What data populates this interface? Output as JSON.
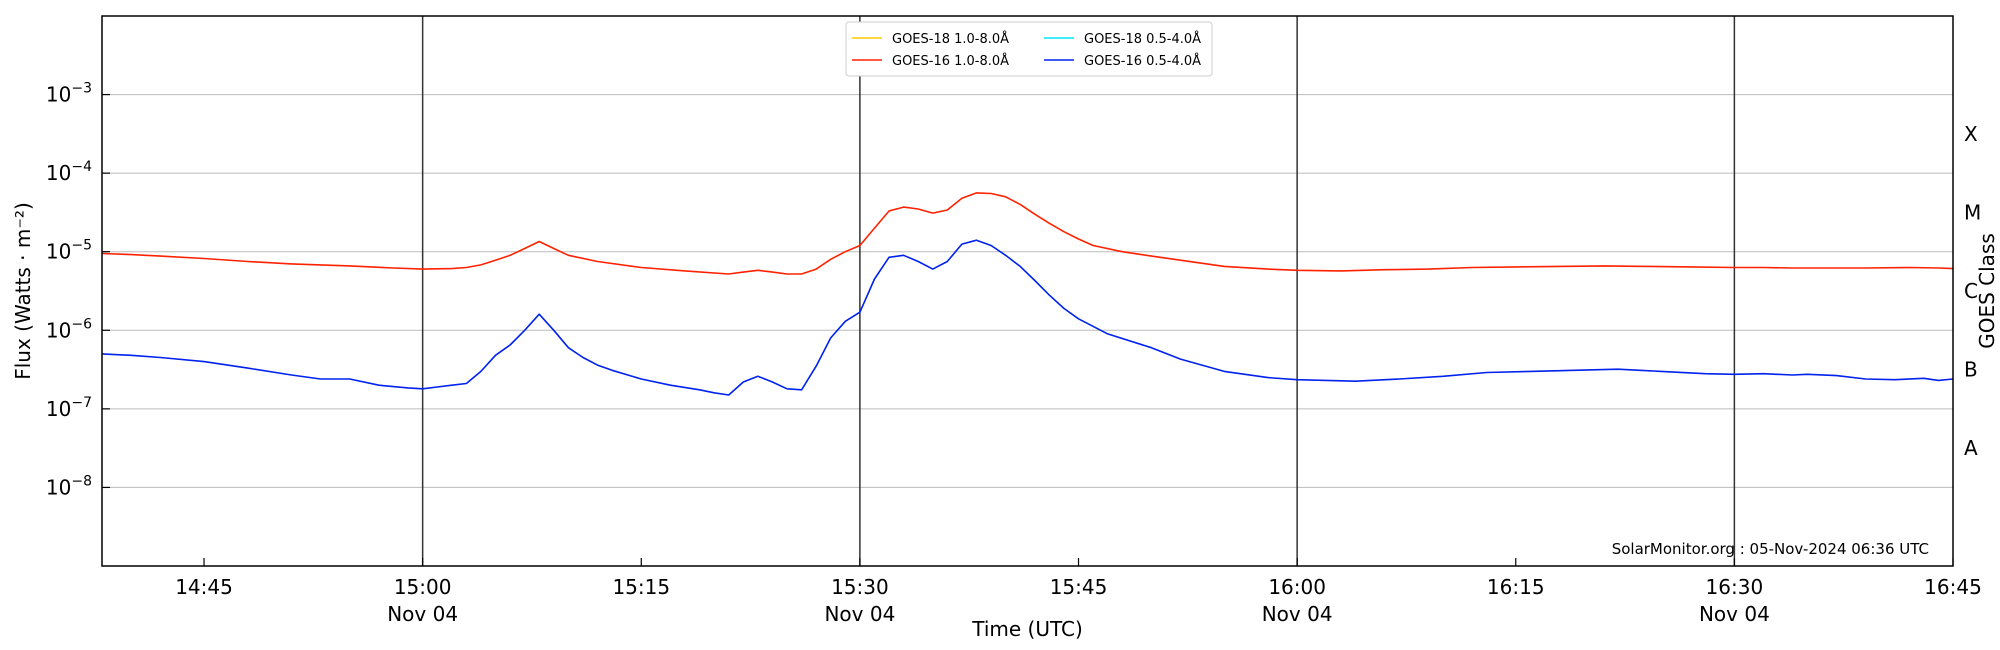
{
  "chart_data": {
    "type": "line",
    "ylabel": "Flux (Watts · m⁻²)",
    "xlabel": "Time (UTC)",
    "right_axis_label": "GOES Class",
    "credit": "SolarMonitor.org : 05-Nov-2024 06:36 UTC",
    "y_scale": "log",
    "ylim": [
      1e-09,
      0.01
    ],
    "xlim": [
      "14:38",
      "16:45"
    ],
    "grid": "horizontal",
    "legend_position": "top-center",
    "y_ticks": [
      {
        "value": 1e-08,
        "base": "10",
        "exp": "−8"
      },
      {
        "value": 1e-07,
        "base": "10",
        "exp": "−7"
      },
      {
        "value": 1e-06,
        "base": "10",
        "exp": "−6"
      },
      {
        "value": 1e-05,
        "base": "10",
        "exp": "−5"
      },
      {
        "value": 0.0001,
        "base": "10",
        "exp": "−4"
      },
      {
        "value": 0.001,
        "base": "10",
        "exp": "−3"
      }
    ],
    "x_ticks": [
      {
        "time": "14:45",
        "label": "14:45",
        "sub": ""
      },
      {
        "time": "15:00",
        "label": "15:00",
        "sub": "Nov 04"
      },
      {
        "time": "15:15",
        "label": "15:15",
        "sub": ""
      },
      {
        "time": "15:30",
        "label": "15:30",
        "sub": "Nov 04"
      },
      {
        "time": "15:45",
        "label": "15:45",
        "sub": ""
      },
      {
        "time": "16:00",
        "label": "16:00",
        "sub": "Nov 04"
      },
      {
        "time": "16:15",
        "label": "16:15",
        "sub": ""
      },
      {
        "time": "16:30",
        "label": "16:30",
        "sub": "Nov 04"
      },
      {
        "time": "16:45",
        "label": "16:45",
        "sub": ""
      }
    ],
    "vertical_lines": [
      "15:00",
      "15:30",
      "16:00",
      "16:30"
    ],
    "goes_classes": [
      {
        "label": "A",
        "value": 3.16e-08
      },
      {
        "label": "B",
        "value": 3.16e-07
      },
      {
        "label": "C",
        "value": 3.16e-06
      },
      {
        "label": "M",
        "value": 3.16e-05
      },
      {
        "label": "X",
        "value": 0.000316
      }
    ],
    "series": [
      {
        "name": "GOES-18 1.0-8.0Å",
        "color": "#ffcc00",
        "x": [],
        "y": []
      },
      {
        "name": "GOES-18 0.5-4.0Å",
        "color": "#00e5ff",
        "x": [],
        "y": []
      },
      {
        "name": "GOES-16 1.0-8.0Å",
        "color": "#ff2200",
        "x": [
          "14:38",
          "14:40",
          "14:42",
          "14:45",
          "14:48",
          "14:51",
          "14:55",
          "14:58",
          "15:00",
          "15:02",
          "15:03",
          "15:04",
          "15:05",
          "15:06",
          "15:07",
          "15:08",
          "15:09",
          "15:10",
          "15:12",
          "15:15",
          "15:18",
          "15:21",
          "15:22",
          "15:23",
          "15:24",
          "15:25",
          "15:26",
          "15:27",
          "15:28",
          "15:29",
          "15:30",
          "15:31",
          "15:32",
          "15:33",
          "15:34",
          "15:35",
          "15:36",
          "15:37",
          "15:38",
          "15:39",
          "15:40",
          "15:41",
          "15:42",
          "15:43",
          "15:44",
          "15:45",
          "15:46",
          "15:48",
          "15:50",
          "15:52",
          "15:55",
          "15:58",
          "16:00",
          "16:03",
          "16:06",
          "16:09",
          "16:12",
          "16:15",
          "16:18",
          "16:21",
          "16:24",
          "16:27",
          "16:30",
          "16:32",
          "16:34",
          "16:36",
          "16:39",
          "16:42",
          "16:44",
          "16:45"
        ],
        "y": [
          9.5e-06,
          9.2e-06,
          8.8e-06,
          8.2e-06,
          7.5e-06,
          7e-06,
          6.6e-06,
          6.2e-06,
          6e-06,
          6.1e-06,
          6.3e-06,
          6.8e-06,
          7.8e-06,
          9e-06,
          1.1e-05,
          1.35e-05,
          1.1e-05,
          9e-06,
          7.5e-06,
          6.3e-06,
          5.7e-06,
          5.2e-06,
          5.5e-06,
          5.8e-06,
          5.5e-06,
          5.2e-06,
          5.2e-06,
          6e-06,
          8e-06,
          1e-05,
          1.2e-05,
          2e-05,
          3.3e-05,
          3.7e-05,
          3.5e-05,
          3.1e-05,
          3.4e-05,
          4.8e-05,
          5.6e-05,
          5.5e-05,
          5e-05,
          4e-05,
          3e-05,
          2.3e-05,
          1.8e-05,
          1.45e-05,
          1.2e-05,
          1e-05,
          8.8e-06,
          7.8e-06,
          6.5e-06,
          6e-06,
          5.8e-06,
          5.7e-06,
          5.9e-06,
          6e-06,
          6.3e-06,
          6.4e-06,
          6.5e-06,
          6.6e-06,
          6.5e-06,
          6.4e-06,
          6.3e-06,
          6.3e-06,
          6.2e-06,
          6.2e-06,
          6.2e-06,
          6.3e-06,
          6.2e-06,
          6.1e-06
        ]
      },
      {
        "name": "GOES-16 0.5-4.0Å",
        "color": "#0022ee",
        "x": [
          "14:38",
          "14:40",
          "14:42",
          "14:45",
          "14:48",
          "14:51",
          "14:53",
          "14:55",
          "14:57",
          "14:59",
          "15:00",
          "15:01",
          "15:02",
          "15:03",
          "15:04",
          "15:05",
          "15:06",
          "15:07",
          "15:08",
          "15:09",
          "15:10",
          "15:11",
          "15:12",
          "15:13",
          "15:15",
          "15:17",
          "15:19",
          "15:20",
          "15:21",
          "15:22",
          "15:23",
          "15:24",
          "15:25",
          "15:26",
          "15:27",
          "15:28",
          "15:29",
          "15:30",
          "15:31",
          "15:32",
          "15:33",
          "15:34",
          "15:35",
          "15:36",
          "15:37",
          "15:38",
          "15:39",
          "15:40",
          "15:41",
          "15:42",
          "15:43",
          "15:44",
          "15:45",
          "15:47",
          "15:50",
          "15:52",
          "15:55",
          "15:58",
          "16:00",
          "16:02",
          "16:04",
          "16:07",
          "16:10",
          "16:13",
          "16:16",
          "16:19",
          "16:22",
          "16:25",
          "16:28",
          "16:30",
          "16:32",
          "16:34",
          "16:35",
          "16:37",
          "16:39",
          "16:41",
          "16:43",
          "16:44",
          "16:45"
        ],
        "y": [
          5e-07,
          4.8e-07,
          4.5e-07,
          4e-07,
          3.3e-07,
          2.7e-07,
          2.4e-07,
          2.4e-07,
          2e-07,
          1.85e-07,
          1.8e-07,
          1.9e-07,
          2e-07,
          2.1e-07,
          3e-07,
          4.8e-07,
          6.5e-07,
          1e-06,
          1.6e-06,
          1e-06,
          6e-07,
          4.5e-07,
          3.6e-07,
          3.1e-07,
          2.4e-07,
          2e-07,
          1.75e-07,
          1.6e-07,
          1.5e-07,
          2.2e-07,
          2.6e-07,
          2.2e-07,
          1.8e-07,
          1.75e-07,
          3.5e-07,
          8e-07,
          1.3e-06,
          1.7e-06,
          4.5e-06,
          8.5e-06,
          9e-06,
          7.5e-06,
          6e-06,
          7.5e-06,
          1.25e-05,
          1.4e-05,
          1.2e-05,
          9e-06,
          6.5e-06,
          4.3e-06,
          2.8e-06,
          1.9e-06,
          1.4e-06,
          9e-07,
          6e-07,
          4.3e-07,
          3e-07,
          2.5e-07,
          2.35e-07,
          2.3e-07,
          2.25e-07,
          2.4e-07,
          2.6e-07,
          2.9e-07,
          3e-07,
          3.1e-07,
          3.2e-07,
          3e-07,
          2.8e-07,
          2.75e-07,
          2.8e-07,
          2.7e-07,
          2.75e-07,
          2.65e-07,
          2.4e-07,
          2.35e-07,
          2.45e-07,
          2.3e-07,
          2.4e-07
        ]
      }
    ],
    "legend_order": [
      0,
      1,
      2,
      3
    ]
  }
}
